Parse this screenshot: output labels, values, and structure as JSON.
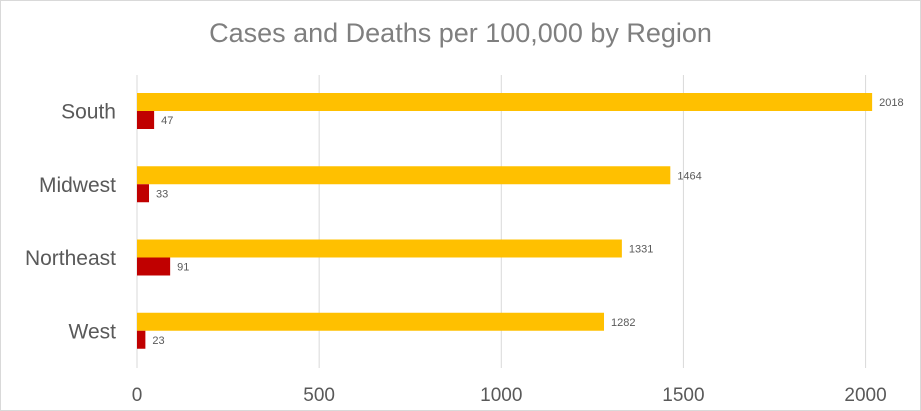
{
  "chart_data": {
    "type": "bar",
    "orientation": "horizontal",
    "title": "Cases and Deaths per 100,000 by Region",
    "categories": [
      "South",
      "Midwest",
      "Northeast",
      "West"
    ],
    "series": [
      {
        "values": [
          2018,
          1464,
          1331,
          1282
        ],
        "color": "#ffc000"
      },
      {
        "values": [
          47,
          33,
          91,
          23
        ],
        "color": "#c00000"
      }
    ],
    "xticks": [
      0,
      500,
      1000,
      1500,
      2000
    ],
    "xlim": [
      0,
      2100
    ],
    "grid": true,
    "legend": "none",
    "xlabel": "",
    "ylabel": ""
  }
}
